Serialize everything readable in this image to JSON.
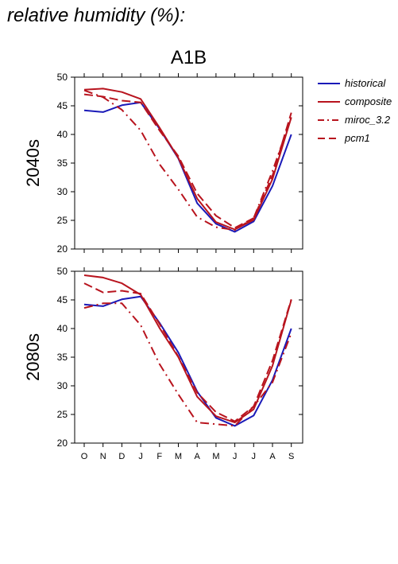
{
  "page_heading": "relative humidity (%):",
  "colors": {
    "historical": "#1a1ab8",
    "model": "#b8141e",
    "axis": "#000000"
  },
  "chart_data": [
    {
      "type": "line",
      "title": "A1B",
      "ylabel": "2040s",
      "xlabel": "",
      "categories": [
        "O",
        "N",
        "D",
        "J",
        "F",
        "M",
        "A",
        "M",
        "J",
        "J",
        "A",
        "S"
      ],
      "ylim": [
        20,
        50
      ],
      "yticks": [
        20,
        25,
        30,
        35,
        40,
        45,
        50
      ],
      "grid": false,
      "legend": "top-right-outside",
      "series": [
        {
          "name": "historical",
          "color": "#1a1ab8",
          "dash": "solid",
          "values": [
            44.2,
            43.9,
            45.1,
            45.6,
            41.0,
            35.8,
            28.0,
            24.4,
            23.0,
            24.8,
            31.0,
            40.0
          ]
        },
        {
          "name": "composite",
          "color": "#b8141e",
          "dash": "solid",
          "values": [
            47.8,
            48.0,
            47.4,
            46.2,
            41.2,
            35.9,
            28.8,
            24.7,
            23.4,
            25.1,
            32.2,
            43.0
          ]
        },
        {
          "name": "miroc_3.2",
          "color": "#b8141e",
          "dash": "dashdot",
          "values": [
            47.7,
            46.5,
            44.3,
            40.7,
            34.8,
            30.4,
            25.6,
            23.8,
            23.3,
            25.4,
            33.6,
            43.0
          ]
        },
        {
          "name": "pcm1",
          "color": "#b8141e",
          "dash": "dashed",
          "values": [
            47.0,
            46.6,
            45.9,
            45.6,
            40.7,
            36.2,
            29.7,
            25.8,
            23.7,
            25.4,
            32.8,
            43.8
          ]
        }
      ]
    },
    {
      "type": "line",
      "title": "",
      "ylabel": "2080s",
      "xlabel": "",
      "categories": [
        "O",
        "N",
        "D",
        "J",
        "F",
        "M",
        "A",
        "M",
        "J",
        "J",
        "A",
        "S"
      ],
      "ylim": [
        20,
        50
      ],
      "yticks": [
        20,
        25,
        30,
        35,
        40,
        45,
        50
      ],
      "grid": false,
      "legend": "none",
      "series": [
        {
          "name": "historical",
          "color": "#1a1ab8",
          "dash": "solid",
          "values": [
            44.2,
            43.9,
            45.1,
            45.6,
            41.0,
            35.8,
            29.0,
            24.4,
            23.0,
            24.8,
            31.0,
            40.0
          ]
        },
        {
          "name": "composite",
          "color": "#b8141e",
          "dash": "solid",
          "values": [
            49.3,
            48.9,
            47.9,
            45.9,
            40.1,
            35.0,
            28.1,
            24.7,
            23.6,
            25.9,
            33.5,
            45.0
          ]
        },
        {
          "name": "miroc_3.2",
          "color": "#b8141e",
          "dash": "dashdot",
          "values": [
            43.6,
            44.4,
            44.4,
            40.6,
            33.8,
            28.5,
            23.6,
            23.3,
            23.0,
            26.4,
            30.6,
            39.2
          ]
        },
        {
          "name": "pcm1",
          "color": "#b8141e",
          "dash": "dashed",
          "values": [
            47.9,
            46.3,
            46.6,
            46.1,
            40.8,
            35.1,
            28.8,
            25.4,
            23.8,
            26.4,
            34.4,
            45.1
          ]
        }
      ]
    }
  ]
}
